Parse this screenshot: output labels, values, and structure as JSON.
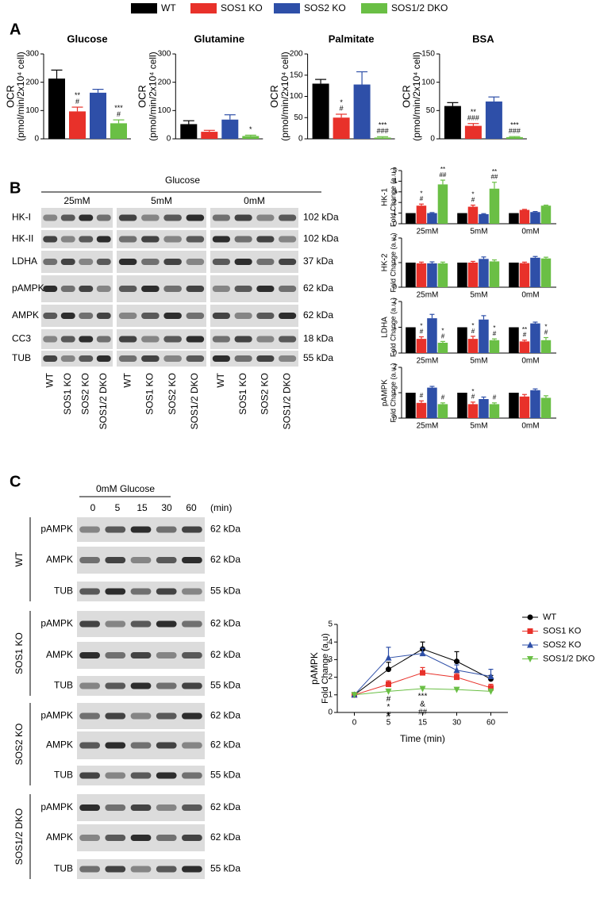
{
  "legend": {
    "items": [
      {
        "name": "WT",
        "color": "#000000"
      },
      {
        "name": "SOS1 KO",
        "color": "#e8312a"
      },
      {
        "name": "SOS2 KO",
        "color": "#2e4fa8"
      },
      {
        "name": "SOS1/2 DKO",
        "color": "#6abf45"
      }
    ]
  },
  "panel_a": {
    "label": "A"
  },
  "panel_b": {
    "label": "B",
    "header": "Glucose",
    "conditions": [
      "25mM",
      "5mM",
      "0mM"
    ],
    "proteins": [
      "HK-I",
      "HK-II",
      "LDHA",
      "pAMPK",
      "AMPK",
      "CC3",
      "TUB"
    ],
    "kda": [
      "102 kDa",
      "102 kDa",
      "37 kDa",
      "62 kDa",
      "62 kDa",
      "18 kDa",
      "55 kDa"
    ],
    "lanes": [
      "WT",
      "SOS1 KO",
      "SOS2 KO",
      "SOS1/2 DKO"
    ]
  },
  "panel_c": {
    "label": "C",
    "header": "0mM Glucose",
    "times": [
      "0",
      "5",
      "15",
      "30",
      "60"
    ],
    "time_unit": "(min)",
    "groups": [
      {
        "name": "WT",
        "rows": [
          {
            "protein": "pAMPK",
            "kda": "62 kDa"
          },
          {
            "protein": "AMPK",
            "kda": "62 kDa"
          },
          {
            "protein": "TUB",
            "kda": "55 kDa"
          }
        ]
      },
      {
        "name": "SOS1 KO",
        "rows": [
          {
            "protein": "pAMPK",
            "kda": "62 kDa"
          },
          {
            "protein": "AMPK",
            "kda": "62 kDa"
          },
          {
            "protein": "TUB",
            "kda": "55 kDa"
          }
        ]
      },
      {
        "name": "SOS2 KO",
        "rows": [
          {
            "protein": "pAMPK",
            "kda": "62 kDa"
          },
          {
            "protein": "AMPK",
            "kda": "62 kDa"
          },
          {
            "protein": "TUB",
            "kda": "55 kDa"
          }
        ]
      },
      {
        "name": "SOS1/2 DKO",
        "rows": [
          {
            "protein": "pAMPK",
            "kda": "62 kDa"
          },
          {
            "protein": "AMPK",
            "kda": "62 kDa"
          },
          {
            "protein": "TUB",
            "kda": "55 kDa"
          }
        ]
      }
    ]
  },
  "chart_data": [
    {
      "type": "bar",
      "title": "Glucose",
      "ylabel": [
        "OCR",
        "(pmol/min/2x10⁴ cell)"
      ],
      "values": [
        213,
        97,
        163,
        55
      ],
      "errors": [
        30,
        15,
        12,
        12
      ],
      "colors": [
        "#000000",
        "#e8312a",
        "#2e4fa8",
        "#6abf45"
      ],
      "ylim": [
        0,
        300
      ],
      "yticks": [
        0,
        100,
        200,
        300
      ],
      "annotations": [
        [],
        [
          {
            "text": "**",
            "color": "#222222"
          },
          {
            "text": "#",
            "color": "#2e4fa8"
          }
        ],
        [],
        [
          {
            "text": "***",
            "color": "#222222"
          },
          {
            "text": "#",
            "color": "#2e4fa8"
          }
        ]
      ]
    },
    {
      "type": "bar",
      "title": "Glutamine",
      "ylabel": [
        "OCR",
        "(pmol/min/2x10⁴ cell)"
      ],
      "values": [
        52,
        25,
        68,
        10
      ],
      "errors": [
        12,
        5,
        17,
        3
      ],
      "colors": [
        "#000000",
        "#e8312a",
        "#2e4fa8",
        "#6abf45"
      ],
      "ylim": [
        0,
        300
      ],
      "yticks": [
        0,
        100,
        200,
        300
      ],
      "annotations": [
        [],
        [],
        [],
        [
          {
            "text": "*",
            "color": "#222222"
          }
        ]
      ]
    },
    {
      "type": "bar",
      "title": "Palmitate",
      "ylabel": [
        "OCR",
        "(pmol/min/2x10⁴ cell)"
      ],
      "values": [
        130,
        50,
        128,
        3
      ],
      "errors": [
        10,
        8,
        30,
        2
      ],
      "colors": [
        "#000000",
        "#e8312a",
        "#2e4fa8",
        "#6abf45"
      ],
      "ylim": [
        0,
        200
      ],
      "yticks": [
        0,
        50,
        100,
        150,
        200
      ],
      "annotations": [
        [],
        [
          {
            "text": "*",
            "color": "#222222"
          },
          {
            "text": "#",
            "color": "#2e4fa8"
          }
        ],
        [],
        [
          {
            "text": "***",
            "color": "#222222"
          },
          {
            "text": "###",
            "color": "#2e4fa8"
          }
        ]
      ]
    },
    {
      "type": "bar",
      "title": "BSA",
      "ylabel": [
        "OCR",
        "(pmol/min/2x10⁴ cell)"
      ],
      "values": [
        58,
        23,
        66,
        3
      ],
      "errors": [
        6,
        4,
        8,
        1
      ],
      "colors": [
        "#000000",
        "#e8312a",
        "#2e4fa8",
        "#6abf45"
      ],
      "ylim": [
        0,
        150
      ],
      "yticks": [
        0,
        50,
        100,
        150
      ],
      "annotations": [
        [],
        [
          {
            "text": "**",
            "color": "#222222"
          },
          {
            "text": "###",
            "color": "#2e4fa8"
          }
        ],
        [],
        [
          {
            "text": "***",
            "color": "#222222"
          },
          {
            "text": "###",
            "color": "#2e4fa8"
          }
        ]
      ]
    },
    {
      "type": "grouped_bar",
      "ylabel": [
        "HK-1",
        "Fold Change (a.u.)"
      ],
      "categories": [
        "25mM",
        "5mM",
        "0mM"
      ],
      "ylim": [
        0,
        5
      ],
      "yticks": [
        0,
        1,
        2,
        3,
        4,
        5
      ],
      "series": [
        {
          "color": "#000000",
          "values": [
            1,
            1,
            1
          ],
          "errors": [
            0,
            0,
            0
          ],
          "annotations": [
            [],
            [],
            []
          ]
        },
        {
          "color": "#e8312a",
          "values": [
            1.7,
            1.6,
            1.3
          ],
          "errors": [
            0.15,
            0.15,
            0.05
          ],
          "annotations": [
            [
              {
                "text": "*",
                "color": "#222222"
              },
              {
                "text": "#",
                "color": "#2e4fa8"
              }
            ],
            [
              {
                "text": "*",
                "color": "#222222"
              },
              {
                "text": "#",
                "color": "#2e4fa8"
              }
            ],
            []
          ]
        },
        {
          "color": "#2e4fa8",
          "values": [
            1.0,
            0.9,
            1.1
          ],
          "errors": [
            0.05,
            0.05,
            0.05
          ],
          "annotations": [
            [],
            [],
            []
          ]
        },
        {
          "color": "#6abf45",
          "values": [
            3.7,
            3.3,
            1.7
          ],
          "errors": [
            0.4,
            0.6,
            0.05
          ],
          "annotations": [
            [
              {
                "text": "**",
                "color": "#222222"
              },
              {
                "text": "##",
                "color": "#2e4fa8"
              }
            ],
            [
              {
                "text": "**",
                "color": "#222222"
              },
              {
                "text": "##",
                "color": "#2e4fa8"
              }
            ],
            []
          ]
        }
      ]
    },
    {
      "type": "grouped_bar",
      "ylabel": [
        "HK-2",
        "Fold Change (a.u.)"
      ],
      "categories": [
        "25mM",
        "5mM",
        "0mM"
      ],
      "ylim": [
        0,
        2
      ],
      "yticks": [
        0,
        1,
        2
      ],
      "series": [
        {
          "color": "#000000",
          "values": [
            1,
            1,
            1
          ],
          "errors": [
            0,
            0,
            0
          ],
          "annotations": [
            [],
            [],
            []
          ]
        },
        {
          "color": "#e8312a",
          "values": [
            0.97,
            1.0,
            0.98
          ],
          "errors": [
            0.05,
            0.05,
            0.04
          ],
          "annotations": [
            [],
            [],
            []
          ]
        },
        {
          "color": "#2e4fa8",
          "values": [
            0.97,
            1.15,
            1.2
          ],
          "errors": [
            0.06,
            0.08,
            0.05
          ],
          "annotations": [
            [],
            [],
            []
          ]
        },
        {
          "color": "#6abf45",
          "values": [
            0.97,
            1.05,
            1.17
          ],
          "errors": [
            0.05,
            0.06,
            0.05
          ],
          "annotations": [
            [],
            [],
            []
          ]
        }
      ]
    },
    {
      "type": "grouped_bar",
      "ylabel": [
        "LDHA",
        "Fold Change (a.u.)"
      ],
      "categories": [
        "25mM",
        "5mM",
        "0mM"
      ],
      "ylim": [
        0,
        2
      ],
      "yticks": [
        0,
        1,
        2
      ],
      "series": [
        {
          "color": "#000000",
          "values": [
            1,
            1,
            1
          ],
          "errors": [
            0,
            0,
            0
          ],
          "annotations": [
            [],
            [],
            []
          ]
        },
        {
          "color": "#e8312a",
          "values": [
            0.55,
            0.55,
            0.45
          ],
          "errors": [
            0.08,
            0.1,
            0.05
          ],
          "annotations": [
            [
              {
                "text": "*",
                "color": "#222222"
              },
              {
                "text": "#",
                "color": "#2e4fa8"
              }
            ],
            [
              {
                "text": "*",
                "color": "#222222"
              },
              {
                "text": "#",
                "color": "#2e4fa8"
              }
            ],
            [
              {
                "text": "**",
                "color": "#222222"
              },
              {
                "text": "#",
                "color": "#2e4fa8"
              }
            ]
          ]
        },
        {
          "color": "#2e4fa8",
          "values": [
            1.35,
            1.3,
            1.15
          ],
          "errors": [
            0.15,
            0.15,
            0.05
          ],
          "annotations": [
            [],
            [],
            []
          ]
        },
        {
          "color": "#6abf45",
          "values": [
            0.4,
            0.5,
            0.5
          ],
          "errors": [
            0.05,
            0.05,
            0.1
          ],
          "annotations": [
            [
              {
                "text": "*",
                "color": "#222222"
              },
              {
                "text": "#",
                "color": "#2e4fa8"
              }
            ],
            [
              {
                "text": "*",
                "color": "#222222"
              },
              {
                "text": "#",
                "color": "#2e4fa8"
              }
            ],
            [
              {
                "text": "*",
                "color": "#222222"
              },
              {
                "text": "#",
                "color": "#2e4fa8"
              }
            ]
          ]
        }
      ]
    },
    {
      "type": "grouped_bar",
      "ylabel": [
        "pAMPK",
        "Fold Change (a.u.)"
      ],
      "categories": [
        "25mM",
        "5mM",
        "0mM"
      ],
      "ylim": [
        0,
        2
      ],
      "yticks": [
        0,
        1,
        2
      ],
      "series": [
        {
          "color": "#000000",
          "values": [
            1,
            1,
            1
          ],
          "errors": [
            0,
            0,
            0
          ],
          "annotations": [
            [],
            [],
            []
          ]
        },
        {
          "color": "#e8312a",
          "values": [
            0.6,
            0.55,
            0.85
          ],
          "errors": [
            0.08,
            0.08,
            0.08
          ],
          "annotations": [
            [
              {
                "text": "#",
                "color": "#2e4fa8"
              }
            ],
            [
              {
                "text": "*",
                "color": "#222222"
              },
              {
                "text": "#",
                "color": "#2e4fa8"
              }
            ],
            []
          ]
        },
        {
          "color": "#2e4fa8",
          "values": [
            1.2,
            0.75,
            1.1
          ],
          "errors": [
            0.05,
            0.08,
            0.05
          ],
          "annotations": [
            [],
            [],
            []
          ]
        },
        {
          "color": "#6abf45",
          "values": [
            0.55,
            0.55,
            0.8
          ],
          "errors": [
            0.05,
            0.05,
            0.08
          ],
          "annotations": [
            [
              {
                "text": "#",
                "color": "#2e4fa8"
              }
            ],
            [
              {
                "text": "#",
                "color": "#2e4fa8"
              }
            ],
            []
          ]
        }
      ]
    },
    {
      "type": "line",
      "ylabel": [
        "pAMPK",
        "Fold Change (a.u)"
      ],
      "xlabel": "Time (min)",
      "categories": [
        "0",
        "5",
        "15",
        "30",
        "60"
      ],
      "ylim": [
        0,
        5
      ],
      "yticks": [
        0,
        1,
        2,
        3,
        4,
        5
      ],
      "series": [
        {
          "name": "WT",
          "color": "#000000",
          "marker": "circle",
          "values": [
            1,
            2.45,
            3.6,
            2.9,
            1.9
          ],
          "errors": [
            0,
            0.4,
            0.4,
            0.55,
            0.2
          ]
        },
        {
          "name": "SOS1 KO",
          "color": "#e8312a",
          "marker": "square",
          "values": [
            1,
            1.6,
            2.25,
            2.0,
            1.4
          ],
          "errors": [
            0,
            0.2,
            0.3,
            0.2,
            0.2
          ]
        },
        {
          "name": "SOS2 KO",
          "color": "#2e4fa8",
          "marker": "triangle",
          "values": [
            1,
            3.1,
            3.35,
            2.4,
            2.05
          ],
          "errors": [
            0,
            0.6,
            0.3,
            0.3,
            0.4
          ]
        },
        {
          "name": "SOS1/2 DKO",
          "color": "#6abf45",
          "marker": "triangle-down",
          "values": [
            1,
            1.2,
            1.35,
            1.3,
            1.2
          ],
          "errors": [
            0,
            0.05,
            0.05,
            0.05,
            0.05
          ]
        }
      ],
      "annotations": [
        [],
        [
          {
            "text": "#",
            "color": "#2e4fa8"
          },
          {
            "text": "*",
            "color": "#222222"
          },
          {
            "text": "#",
            "color": "#2e4fa8"
          }
        ],
        [
          {
            "text": "***",
            "color": "#222222"
          },
          {
            "text": "&",
            "color": "#e8312a"
          },
          {
            "text": "##",
            "color": "#2e4fa8"
          }
        ],
        [],
        []
      ]
    }
  ]
}
